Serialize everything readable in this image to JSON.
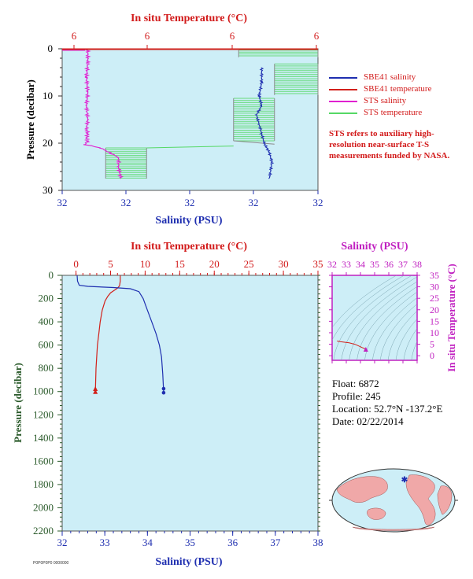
{
  "colors": {
    "background": "#cdeef7",
    "salinity_sbe": "#1f2fb0",
    "temperature_sbe": "#d2201a",
    "salinity_sts": "#e020d0",
    "temperature_sts": "#55d865",
    "inset_axis": "#c020c0",
    "pressure_axis": "#2a5a2a",
    "text_red": "#d21a1a",
    "text_blue": "#1f2fb0"
  },
  "legend": {
    "items": [
      {
        "label": "SBE41 salinity",
        "color": "#1f2fb0"
      },
      {
        "label": "SBE41 temperature",
        "color": "#d2201a"
      },
      {
        "label": "STS salinity",
        "color": "#e020d0"
      },
      {
        "label": "STS temperature",
        "color": "#55d865"
      }
    ]
  },
  "note": "STS refers to auxiliary high-resolution near-surface T-S measurements funded by NASA.",
  "info": {
    "float_label": "Float:",
    "float_value": "6872",
    "profile_label": "Profile:",
    "profile_value": "245",
    "location_label": "Location:",
    "location_value": "52.7°N  -137.2°E",
    "date_label": "Date:",
    "date_value": "02/22/2014"
  },
  "footer": "P0P0P0P0 0000000",
  "chart_data": [
    {
      "type": "line",
      "name_id": "near-surface",
      "xlabel_top": "In situ Temperature (°C)",
      "xlabel_bottom": "Salinity (PSU)",
      "ylabel": "Pressure (decibar)",
      "top_ticks": [
        "6",
        "6",
        "6",
        "6"
      ],
      "bottom_ticks": [
        "32",
        "32",
        "32",
        "32",
        "32"
      ],
      "left_ticks": [
        "0",
        "10",
        "20",
        "30"
      ],
      "ylim": [
        30,
        0
      ],
      "series": [
        {
          "id": "sts-salinity",
          "x_frac": [
            0.09,
            0.1,
            0.1,
            0.095,
            0.1,
            0.095,
            0.1,
            0.095,
            0.1,
            0.095,
            0.1,
            0.09,
            0.15,
            0.22,
            0.22,
            0.23
          ],
          "y": [
            0,
            0.3,
            3,
            6,
            9,
            12,
            15,
            17,
            18,
            19,
            19.5,
            20.3,
            21,
            23,
            25,
            27.5
          ]
        },
        {
          "id": "sbe-salinity",
          "x_frac": [
            0.78,
            0.78,
            0.77,
            0.78,
            0.76,
            0.77,
            0.78,
            0.79,
            0.8,
            0.81,
            0.82,
            0.81
          ],
          "y": [
            4,
            7,
            10,
            12,
            14,
            16,
            18,
            20,
            21,
            22,
            24,
            27.5
          ]
        },
        {
          "id": "sbe-temperature",
          "x_frac": [
            1.0,
            0.0
          ],
          "y": [
            0,
            0
          ]
        }
      ]
    },
    {
      "type": "line",
      "name_id": "full-profile",
      "xlabel_top": "In situ Temperature (°C)",
      "xlabel_bottom": "Salinity (PSU)",
      "ylabel": "Pressure (decibar)",
      "top_ticks": [
        "0",
        "5",
        "10",
        "15",
        "20",
        "25",
        "30",
        "35"
      ],
      "bottom_ticks": [
        "32",
        "33",
        "34",
        "35",
        "36",
        "37",
        "38"
      ],
      "left_ticks": [
        "0",
        "200",
        "400",
        "600",
        "800",
        "1000",
        "1200",
        "1400",
        "1600",
        "1800",
        "2000",
        "2200"
      ],
      "temp_range": [
        -2,
        35
      ],
      "sal_range": [
        32,
        38
      ],
      "p_range": [
        0,
        2200
      ],
      "temperature": {
        "t": [
          6.4,
          6.4,
          6.3,
          6.0,
          5.5,
          5.0,
          4.6,
          4.2,
          3.8,
          3.5,
          3.3,
          3.1,
          3.0,
          2.9,
          2.85,
          2.8
        ],
        "p": [
          0,
          50,
          90,
          110,
          130,
          150,
          180,
          220,
          300,
          400,
          500,
          600,
          700,
          800,
          900,
          1000
        ]
      },
      "salinity": {
        "s": [
          32.35,
          32.36,
          32.4,
          32.6,
          33.2,
          33.6,
          33.8,
          33.9,
          34.0,
          34.1,
          34.2,
          34.28,
          34.33,
          34.36,
          34.38
        ],
        "p": [
          0,
          50,
          85,
          95,
          105,
          115,
          140,
          200,
          300,
          400,
          500,
          600,
          700,
          850,
          1000
        ]
      }
    },
    {
      "type": "scatter",
      "name_id": "ts-inset",
      "xlabel": "Salinity (PSU)",
      "ylabel": "In situ Temperature (°C)",
      "x_ticks": [
        "32",
        "33",
        "34",
        "35",
        "36",
        "37",
        "38"
      ],
      "y_ticks": [
        "0",
        "5",
        "10",
        "15",
        "20",
        "25",
        "30",
        "35"
      ],
      "xlim": [
        32,
        38
      ],
      "ylim": [
        -2,
        35
      ],
      "points": {
        "s": [
          32.35,
          32.6,
          33.2,
          33.6,
          33.9,
          34.1,
          34.3,
          34.38
        ],
        "t": [
          6.4,
          6.1,
          5.6,
          5.0,
          4.2,
          3.6,
          3.1,
          2.8
        ]
      }
    }
  ]
}
